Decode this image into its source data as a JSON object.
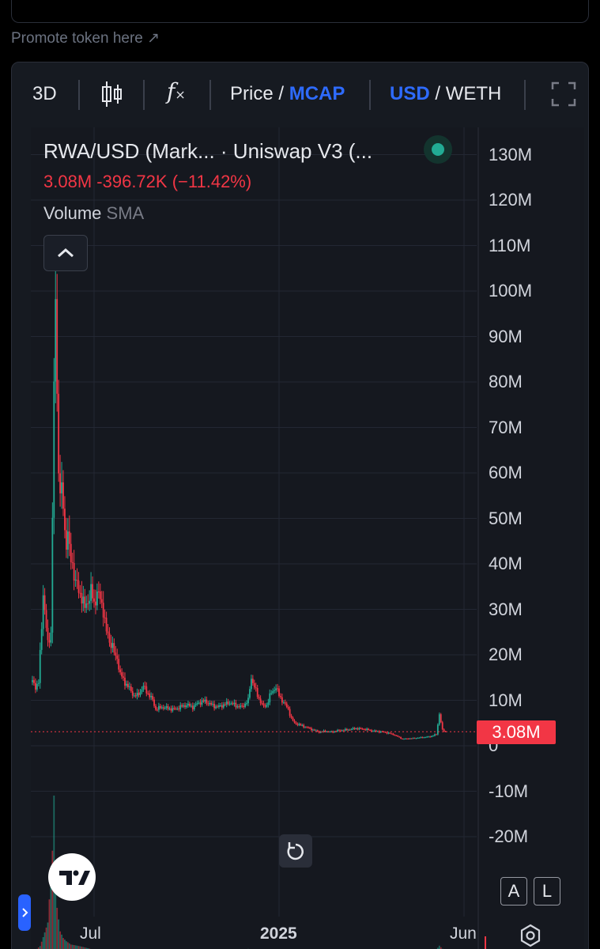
{
  "promote_label": "Promote token here ↗",
  "toolbar": {
    "timeframe": "3D",
    "price_label": "Price",
    "separator": " / ",
    "mcap_label": "MCAP",
    "usd_label": "USD",
    "weth_label": "WETH"
  },
  "legend": {
    "pair": "RWA/USD (Mark...",
    "exchange": "· Uniswap V3 (...",
    "value": "3.08M",
    "change": "-396.72K",
    "change_pct": "(−11.42%)",
    "volume_label": "Volume",
    "sma_label": "SMA"
  },
  "price_tag": "3.08M",
  "buttons": {
    "auto": "A",
    "log": "L"
  },
  "colors": {
    "up": "#22ab94",
    "down": "#f23645",
    "accent": "#2e6bff",
    "background": "#15181f"
  },
  "chart_data": {
    "type": "candlestick",
    "title": "RWA/USD (Mark... · Uniswap V3 (...",
    "y_tick_labels": [
      "130M",
      "120M",
      "110M",
      "100M",
      "90M",
      "80M",
      "70M",
      "60M",
      "50M",
      "40M",
      "30M",
      "20M",
      "10M",
      "0",
      "-10M",
      "-20M"
    ],
    "y_ticks": [
      130,
      120,
      110,
      100,
      90,
      80,
      70,
      60,
      50,
      40,
      30,
      20,
      10,
      0,
      -10,
      -20
    ],
    "ylim": [
      -25,
      140
    ],
    "y_unit": "M USD",
    "x_tick_labels": [
      "Jul",
      "2025",
      "Jun"
    ],
    "x_ticks": [
      40,
      160,
      280
    ],
    "xlim": [
      0,
      324
    ],
    "x_unit": "days",
    "last_value": 3.08,
    "series": [
      {
        "type": "market_cap",
        "values": [
          [
            0,
            14
          ],
          [
            2,
            13
          ],
          [
            4,
            14
          ],
          [
            5,
            20
          ],
          [
            6,
            26
          ],
          [
            7,
            34
          ],
          [
            8,
            30
          ],
          [
            10,
            22
          ],
          [
            12,
            25
          ],
          [
            14,
            78
          ],
          [
            15,
            95
          ],
          [
            16,
            80
          ],
          [
            17,
            60
          ],
          [
            19,
            55
          ],
          [
            20,
            52
          ],
          [
            22,
            44
          ],
          [
            23,
            48
          ],
          [
            24,
            42
          ],
          [
            26,
            40
          ],
          [
            28,
            36
          ],
          [
            30,
            34
          ],
          [
            32,
            33
          ],
          [
            34,
            30
          ],
          [
            35,
            31
          ],
          [
            37,
            33
          ],
          [
            38,
            34
          ],
          [
            40,
            31
          ],
          [
            42,
            34
          ],
          [
            44,
            32
          ],
          [
            46,
            30
          ],
          [
            48,
            25
          ],
          [
            50,
            23
          ],
          [
            52,
            22
          ],
          [
            54,
            19
          ],
          [
            55,
            20
          ],
          [
            56,
            17
          ],
          [
            57,
            16
          ],
          [
            58,
            15
          ],
          [
            60,
            14
          ],
          [
            62,
            13
          ],
          [
            64,
            12
          ],
          [
            66,
            11
          ],
          [
            68,
            11
          ],
          [
            70,
            12
          ],
          [
            72,
            13
          ],
          [
            74,
            12
          ],
          [
            76,
            11
          ],
          [
            78,
            10
          ],
          [
            80,
            8
          ],
          [
            84,
            8.5
          ],
          [
            88,
            8.2
          ],
          [
            92,
            8
          ],
          [
            96,
            8.5
          ],
          [
            100,
            9
          ],
          [
            104,
            8.5
          ],
          [
            108,
            9.5
          ],
          [
            112,
            9.8
          ],
          [
            116,
            9
          ],
          [
            120,
            8.5
          ],
          [
            124,
            9
          ],
          [
            128,
            9.5
          ],
          [
            132,
            8.8
          ],
          [
            136,
            8.5
          ],
          [
            140,
            10
          ],
          [
            142,
            15
          ],
          [
            144,
            13
          ],
          [
            146,
            11
          ],
          [
            150,
            8.5
          ],
          [
            152,
            9
          ],
          [
            154,
            11
          ],
          [
            156,
            12
          ],
          [
            158,
            13
          ],
          [
            160,
            11
          ],
          [
            162,
            10
          ],
          [
            164,
            9
          ],
          [
            166,
            8
          ],
          [
            168,
            6
          ],
          [
            170,
            5
          ],
          [
            174,
            4.5
          ],
          [
            178,
            4
          ],
          [
            182,
            3.5
          ],
          [
            186,
            3
          ],
          [
            190,
            3.2
          ],
          [
            194,
            3
          ],
          [
            198,
            3.3
          ],
          [
            204,
            3.5
          ],
          [
            210,
            3.8
          ],
          [
            216,
            3.6
          ],
          [
            222,
            3.2
          ],
          [
            228,
            3
          ],
          [
            234,
            2.5
          ],
          [
            240,
            1.5
          ],
          [
            246,
            1.6
          ],
          [
            252,
            1.8
          ],
          [
            258,
            2
          ],
          [
            262,
            2.5
          ],
          [
            264,
            7
          ],
          [
            266,
            3.4
          ],
          [
            268,
            3.08
          ]
        ]
      },
      {
        "type": "volume",
        "values": [
          [
            0,
            0.3
          ],
          [
            5,
            0.5
          ],
          [
            10,
            1.2
          ],
          [
            14,
            4
          ],
          [
            15,
            2.5
          ],
          [
            16,
            1.5
          ],
          [
            18,
            0.8
          ],
          [
            20,
            0.6
          ],
          [
            22,
            0.5
          ],
          [
            25,
            0.4
          ],
          [
            30,
            0.35
          ],
          [
            35,
            0.3
          ],
          [
            40,
            0.25
          ],
          [
            50,
            0.25
          ],
          [
            60,
            0.2
          ],
          [
            80,
            0.15
          ],
          [
            100,
            0.15
          ],
          [
            120,
            0.15
          ],
          [
            140,
            0.35
          ],
          [
            150,
            0.3
          ],
          [
            160,
            0.25
          ],
          [
            180,
            0.15
          ],
          [
            200,
            0.1
          ],
          [
            220,
            0.1
          ],
          [
            240,
            0.1
          ],
          [
            260,
            0.15
          ],
          [
            264,
            0.35
          ],
          [
            268,
            0.2
          ]
        ]
      }
    ]
  }
}
